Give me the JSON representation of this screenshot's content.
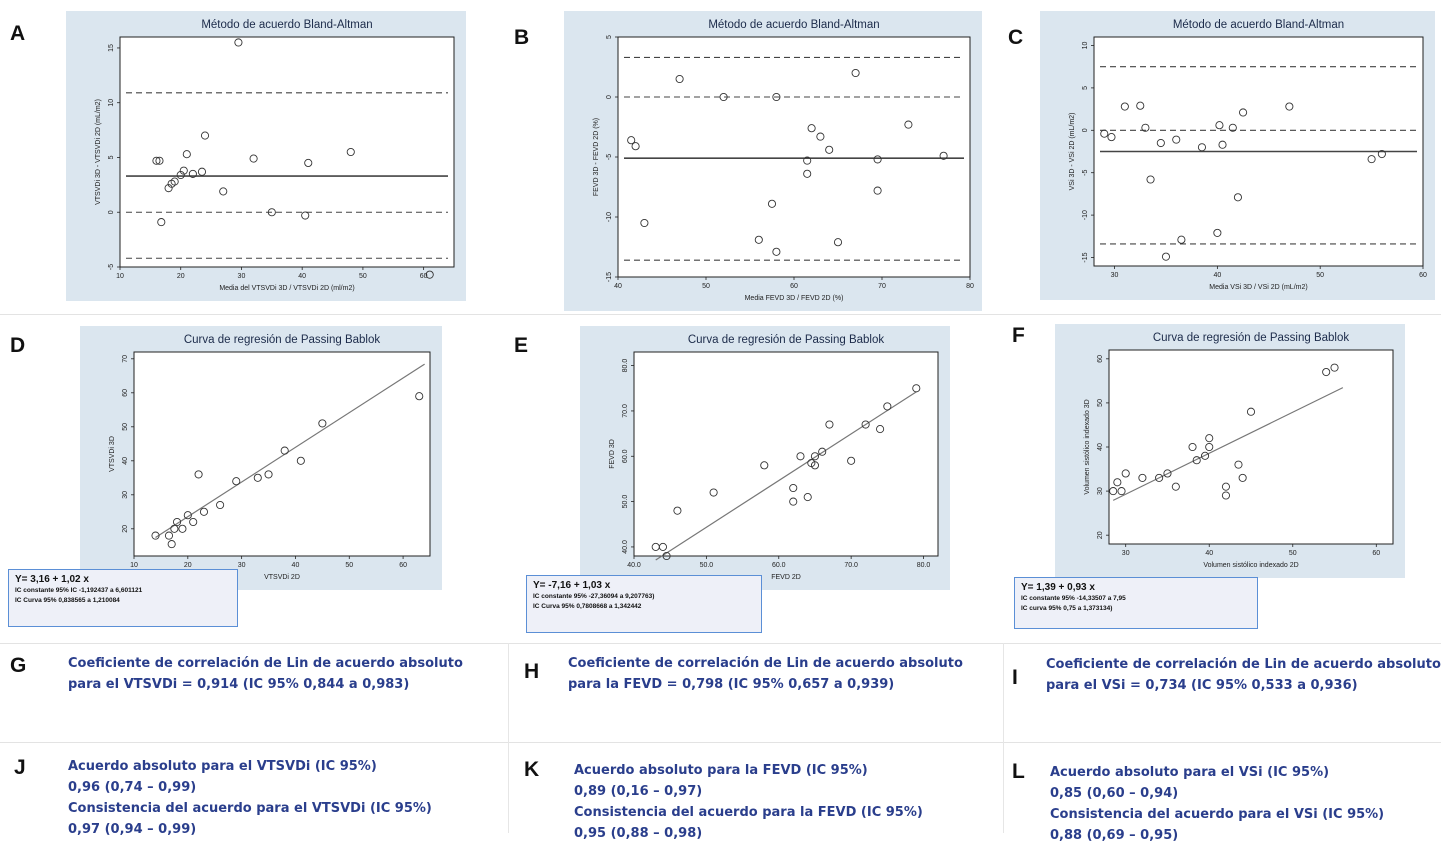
{
  "letters": {
    "A": "A",
    "B": "B",
    "C": "C",
    "D": "D",
    "E": "E",
    "F": "F",
    "G": "G",
    "H": "H",
    "I": "I",
    "J": "J",
    "K": "K",
    "L": "L"
  },
  "chart_data": [
    {
      "id": "A",
      "type": "scatter",
      "subtype": "bland-altman",
      "title": "Método de acuerdo Bland-Altman",
      "xlabel": "Media del VTSVDi 3D / VTSVDi 2D (ml/m2)",
      "ylabel": "VTSVDi 3D - VTSVDi 2D (mL/m2)",
      "xlim": [
        10,
        65
      ],
      "ylim": [
        -5,
        16
      ],
      "xticks": [
        10,
        20,
        30,
        40,
        50,
        60
      ],
      "yticks": [
        -5,
        0,
        5,
        10,
        15
      ],
      "hlines": [
        {
          "y": 3.3,
          "style": "solid"
        },
        {
          "y": 10.9,
          "style": "dashed"
        },
        {
          "y": 0,
          "style": "dashed"
        },
        {
          "y": -4.2,
          "style": "dashed"
        }
      ],
      "points": [
        [
          16,
          4.7
        ],
        [
          16.5,
          4.7
        ],
        [
          16.8,
          -0.9
        ],
        [
          18,
          2.2
        ],
        [
          18.5,
          2.6
        ],
        [
          19,
          2.8
        ],
        [
          20,
          3.4
        ],
        [
          20.5,
          3.8
        ],
        [
          21,
          5.3
        ],
        [
          22,
          3.5
        ],
        [
          23.5,
          3.7
        ],
        [
          24,
          7
        ],
        [
          27,
          1.9
        ],
        [
          29.5,
          15.5
        ],
        [
          32,
          4.9
        ],
        [
          35,
          0
        ],
        [
          40.5,
          -0.3
        ],
        [
          41,
          4.5
        ],
        [
          48,
          5.5
        ],
        [
          61,
          -5.7
        ]
      ]
    },
    {
      "id": "B",
      "type": "scatter",
      "subtype": "bland-altman",
      "title": "Método de acuerdo Bland-Altman",
      "xlabel": "Media FEVD 3D / FEVD 2D (%)",
      "ylabel": "FEVD 3D - FEVD 2D (%)",
      "xlim": [
        40,
        80
      ],
      "ylim": [
        -15,
        5
      ],
      "xticks": [
        40,
        50,
        60,
        70,
        80
      ],
      "yticks": [
        -15,
        -10,
        -5,
        0,
        5
      ],
      "hlines": [
        {
          "y": -5.1,
          "style": "solid"
        },
        {
          "y": 3.3,
          "style": "dashed"
        },
        {
          "y": 0,
          "style": "dashed"
        },
        {
          "y": -13.6,
          "style": "dashed"
        }
      ],
      "points": [
        [
          41.5,
          -3.6
        ],
        [
          42,
          -4.1
        ],
        [
          43,
          -10.5
        ],
        [
          47,
          1.5
        ],
        [
          52,
          0
        ],
        [
          56,
          -11.9
        ],
        [
          57.5,
          -8.9
        ],
        [
          58,
          -12.9
        ],
        [
          58,
          0
        ],
        [
          61.5,
          -6.4
        ],
        [
          61.5,
          -5.3
        ],
        [
          62,
          -2.6
        ],
        [
          63,
          -3.3
        ],
        [
          64,
          -4.4
        ],
        [
          65,
          -12.1
        ],
        [
          67,
          2
        ],
        [
          69.5,
          -7.8
        ],
        [
          69.5,
          -5.2
        ],
        [
          73,
          -2.3
        ],
        [
          77,
          -4.9
        ]
      ]
    },
    {
      "id": "C",
      "type": "scatter",
      "subtype": "bland-altman",
      "title": "Método de acuerdo Bland-Altman",
      "xlabel": "Media VSi 3D / VSi 2D (mL/m2)",
      "ylabel": "VSi 3D - VSi 2D (mL/m2)",
      "xlim": [
        28,
        60
      ],
      "ylim": [
        -16,
        11
      ],
      "xticks": [
        30,
        40,
        50,
        60
      ],
      "yticks": [
        -15,
        -10,
        -5,
        0,
        5,
        10
      ],
      "hlines": [
        {
          "y": -2.5,
          "style": "solid"
        },
        {
          "y": 7.5,
          "style": "dashed"
        },
        {
          "y": 0,
          "style": "dashed"
        },
        {
          "y": -13.4,
          "style": "dashed"
        }
      ],
      "points": [
        [
          29,
          -0.4
        ],
        [
          29.7,
          -0.8
        ],
        [
          31,
          2.8
        ],
        [
          32.5,
          2.9
        ],
        [
          33,
          0.3
        ],
        [
          33.5,
          -5.8
        ],
        [
          34.5,
          -1.5
        ],
        [
          35,
          -14.9
        ],
        [
          36,
          -1.1
        ],
        [
          36.5,
          -12.9
        ],
        [
          38.5,
          -2
        ],
        [
          40,
          -12.1
        ],
        [
          40.2,
          0.6
        ],
        [
          40.5,
          -1.7
        ],
        [
          41.5,
          0.3
        ],
        [
          42,
          -7.9
        ],
        [
          42.5,
          2.1
        ],
        [
          47,
          2.8
        ],
        [
          55,
          -3.4
        ],
        [
          56,
          -2.8
        ]
      ]
    },
    {
      "id": "D",
      "type": "scatter",
      "subtype": "passing-bablok",
      "title": "Curva de regresión de Passing Bablok",
      "xlabel": "VTSVDi 2D",
      "ylabel": "VTSVDi 3D",
      "xlim": [
        10,
        65
      ],
      "ylim": [
        12,
        72
      ],
      "xticks": [
        10,
        20,
        30,
        40,
        50,
        60
      ],
      "yticks": [
        20,
        30,
        40,
        50,
        60,
        70
      ],
      "line": {
        "intercept": 3.16,
        "slope": 1.02,
        "x": [
          14,
          64
        ]
      },
      "points": [
        [
          14,
          18
        ],
        [
          16.5,
          18
        ],
        [
          17,
          15.5
        ],
        [
          17.5,
          20
        ],
        [
          18,
          22
        ],
        [
          19,
          20
        ],
        [
          20,
          24
        ],
        [
          21,
          22
        ],
        [
          22,
          36
        ],
        [
          23,
          25
        ],
        [
          26,
          27
        ],
        [
          29,
          34
        ],
        [
          33,
          35
        ],
        [
          35,
          36
        ],
        [
          38,
          43
        ],
        [
          41,
          40
        ],
        [
          45,
          51
        ],
        [
          63,
          59
        ]
      ]
    },
    {
      "id": "E",
      "type": "scatter",
      "subtype": "passing-bablok",
      "title": "Curva de regresión de Passing Bablok",
      "xlabel": "FEVD 2D",
      "ylabel": "FEVD 3D",
      "xlim": [
        40,
        82
      ],
      "ylim": [
        38,
        83
      ],
      "xticks": [
        40.0,
        50.0,
        60.0,
        70.0,
        80.0
      ],
      "yticks": [
        40.0,
        50.0,
        60.0,
        70.0,
        80.0
      ],
      "line": {
        "intercept": -7.16,
        "slope": 1.03,
        "x": [
          43,
          79
        ]
      },
      "points": [
        [
          43,
          40
        ],
        [
          44,
          40
        ],
        [
          44.5,
          38
        ],
        [
          46,
          48
        ],
        [
          51,
          52
        ],
        [
          58,
          58
        ],
        [
          62,
          50
        ],
        [
          62,
          53
        ],
        [
          63,
          60
        ],
        [
          64,
          51
        ],
        [
          64.5,
          58.5
        ],
        [
          65,
          58
        ],
        [
          65,
          60
        ],
        [
          66,
          61
        ],
        [
          67,
          67
        ],
        [
          70,
          59
        ],
        [
          72,
          67
        ],
        [
          74,
          66
        ],
        [
          75,
          71
        ],
        [
          79,
          75
        ]
      ]
    },
    {
      "id": "F",
      "type": "scatter",
      "subtype": "passing-bablok",
      "title": "Curva de regresión de Passing Bablok",
      "xlabel": "Volumen sistólico indexado 2D",
      "ylabel": "Volumen sistólico indexado 3D",
      "xlim": [
        28,
        62
      ],
      "ylim": [
        18,
        62
      ],
      "xticks": [
        30,
        40,
        50,
        60
      ],
      "yticks": [
        20,
        30,
        40,
        50,
        60
      ],
      "line": {
        "intercept": 1.39,
        "slope": 0.93,
        "x": [
          28.5,
          56
        ]
      },
      "points": [
        [
          28.5,
          30
        ],
        [
          29,
          32
        ],
        [
          29.5,
          30
        ],
        [
          30,
          34
        ],
        [
          32,
          33
        ],
        [
          34,
          33
        ],
        [
          35,
          34
        ],
        [
          36,
          31
        ],
        [
          38,
          40
        ],
        [
          38.5,
          37
        ],
        [
          39.5,
          38
        ],
        [
          40,
          42
        ],
        [
          40,
          40
        ],
        [
          42,
          31
        ],
        [
          42,
          29
        ],
        [
          43.5,
          36
        ],
        [
          44,
          33
        ],
        [
          45,
          48
        ],
        [
          54,
          57
        ],
        [
          55,
          58
        ]
      ]
    }
  ],
  "regression": {
    "D": {
      "equation": "Y= 3,16 + 1,02 x",
      "ic_constante": "IC constante 95% IC -1,192437 a 6,601121",
      "ic_curva": "IC Curva 95% 0,838565 a 1,210084"
    },
    "E": {
      "equation": "Y= -7,16 + 1,03 x",
      "ic_constante": "IC constante 95% -27,36094 a 9,207763)",
      "ic_curva": "IC Curva 95% 0,7808668 a 1,342442"
    },
    "F": {
      "equation": "Y= 1,39 + 0,93 x",
      "ic_constante": "IC constante 95% -14,33507 a 7,95",
      "ic_curva": "IC curva 95% 0,75 a 1,373134)"
    }
  },
  "lin": {
    "G": {
      "line1": "Coeficiente de correlación de Lin de acuerdo absoluto",
      "line2": "para el VTSVDi = 0,914  (IC 95% 0,844 a  0,983)"
    },
    "H": {
      "line1": "Coeficiente de correlación de Lin de acuerdo absoluto",
      "line2": "para la FEVD = 0,798  (IC 95% 0,657 a  0,939)"
    },
    "I": {
      "line1": "Coeficiente de correlación de Lin de acuerdo absoluto",
      "line2": "para el VSi  = 0,734  (IC 95% 0,533 a  0,936)"
    }
  },
  "agreement": {
    "J": {
      "l1": "Acuerdo absoluto para el VTSVDi (IC 95%)",
      "l2": "0,96 (0,74 – 0,99)",
      "l3": "Consistencia del acuerdo para el VTSVDi (IC 95%)",
      "l4": "0,97 (0,94 – 0,99)"
    },
    "K": {
      "l1": "Acuerdo absoluto para la FEVD (IC 95%)",
      "l2": "0,89 (0,16 – 0,97)",
      "l3": "Consistencia del acuerdo para la FEVD (IC 95%)",
      "l4": "0,95 (0,88 – 0,98)"
    },
    "L": {
      "l1": "Acuerdo absoluto para el VSi (IC 95%)",
      "l2": "0,85 (0,60 – 0,94)",
      "l3": "Consistencia del acuerdo para el VSi (IC 95%)",
      "l4": "0,88 (0,69 – 0,95)"
    }
  }
}
